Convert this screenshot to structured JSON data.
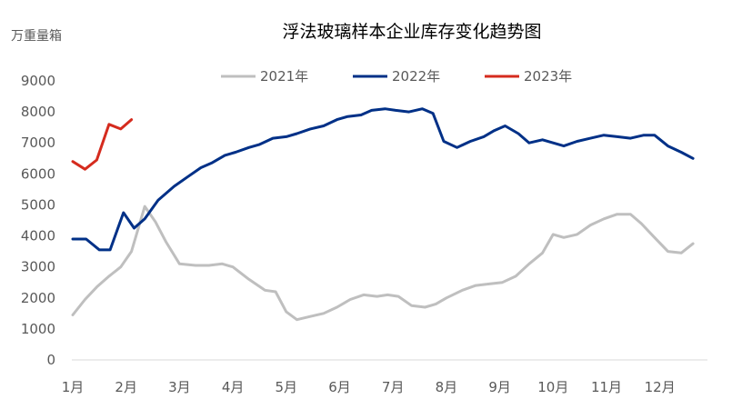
{
  "chart_data": {
    "type": "line",
    "title": "浮法玻璃样本企业库存变化趋势图",
    "unit_label": "万重量箱",
    "ylim": [
      0,
      9000
    ],
    "yticks": [
      "0",
      "1000",
      "2000",
      "3000",
      "4000",
      "5000",
      "6000",
      "7000",
      "8000",
      "9000"
    ],
    "months": [
      "1月",
      "2月",
      "3月",
      "4月",
      "5月",
      "6月",
      "7月",
      "8月",
      "9月",
      "10月",
      "11月",
      "12月"
    ],
    "xlim": [
      1,
      12.62
    ],
    "grid": false,
    "legend_position": "top",
    "series": [
      {
        "name": "2021年",
        "color": "#BFBFBF",
        "x": [
          1.0,
          1.23,
          1.45,
          1.68,
          1.9,
          2.1,
          2.35,
          2.55,
          2.75,
          3.0,
          3.3,
          3.55,
          3.8,
          4.0,
          4.3,
          4.6,
          4.8,
          5.0,
          5.2,
          5.45,
          5.7,
          5.95,
          6.2,
          6.45,
          6.7,
          6.9,
          7.1,
          7.35,
          7.6,
          7.8,
          8.0,
          8.3,
          8.55,
          8.8,
          9.05,
          9.3,
          9.55,
          9.8,
          10.0,
          10.2,
          10.45,
          10.7,
          10.95,
          11.2,
          11.45,
          11.65,
          11.9,
          12.15,
          12.4,
          12.62
        ],
        "y": [
          1450,
          1950,
          2350,
          2700,
          3000,
          3500,
          4950,
          4450,
          3800,
          3100,
          3050,
          3050,
          3100,
          3000,
          2600,
          2250,
          2200,
          1550,
          1300,
          1400,
          1500,
          1700,
          1950,
          2100,
          2050,
          2100,
          2050,
          1750,
          1700,
          1800,
          2000,
          2250,
          2400,
          2450,
          2500,
          2700,
          3100,
          3450,
          4050,
          3950,
          4050,
          4350,
          4550,
          4700,
          4700,
          4400,
          3950,
          3500,
          3450,
          3750
        ]
      },
      {
        "name": "2022年",
        "color": "#003087",
        "x": [
          1.0,
          1.25,
          1.5,
          1.7,
          1.95,
          2.15,
          2.35,
          2.6,
          2.9,
          3.15,
          3.4,
          3.6,
          3.85,
          4.05,
          4.3,
          4.5,
          4.75,
          5.0,
          5.2,
          5.45,
          5.7,
          5.95,
          6.15,
          6.4,
          6.6,
          6.85,
          7.05,
          7.3,
          7.55,
          7.75,
          7.95,
          8.2,
          8.45,
          8.7,
          8.9,
          9.1,
          9.35,
          9.55,
          9.8,
          10.0,
          10.2,
          10.45,
          10.7,
          10.95,
          11.2,
          11.45,
          11.7,
          11.9,
          12.15,
          12.4,
          12.62
        ],
        "y": [
          3900,
          3900,
          3550,
          3550,
          4750,
          4250,
          4550,
          5150,
          5600,
          5900,
          6200,
          6350,
          6600,
          6700,
          6850,
          6950,
          7150,
          7200,
          7300,
          7450,
          7550,
          7750,
          7850,
          7900,
          8050,
          8100,
          8050,
          8000,
          8100,
          7950,
          7050,
          6850,
          7050,
          7200,
          7400,
          7550,
          7300,
          7000,
          7100,
          7000,
          6900,
          7050,
          7150,
          7250,
          7200,
          7150,
          7250,
          7250,
          6900,
          6700,
          6500
        ]
      },
      {
        "name": "2023年",
        "color": "#D52B1E",
        "x": [
          1.0,
          1.23,
          1.45,
          1.68,
          1.9,
          2.1
        ],
        "y": [
          6400,
          6150,
          6450,
          7600,
          7450,
          7750
        ]
      }
    ]
  }
}
